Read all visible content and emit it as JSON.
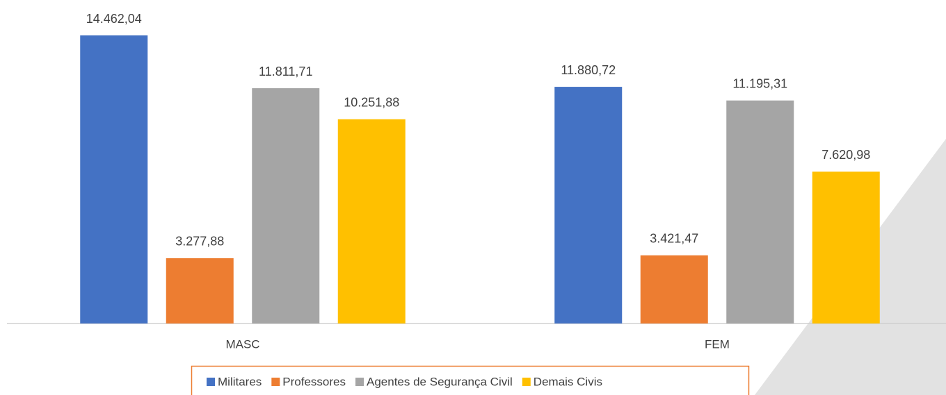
{
  "chart_data": {
    "type": "bar",
    "categories": [
      "MASC",
      "FEM"
    ],
    "series": [
      {
        "name": "Militares",
        "color": "#4472c4",
        "values": [
          14462.04,
          11880.72
        ],
        "value_labels": [
          "14.462,04",
          "11.880,72"
        ]
      },
      {
        "name": "Professores",
        "color": "#ed7d31",
        "values": [
          3277.88,
          3421.47
        ],
        "value_labels": [
          "3.277,88",
          "3.421,47"
        ]
      },
      {
        "name": "Agentes de Segurança Civil",
        "color": "#a5a5a5",
        "values": [
          11811.71,
          11195.31
        ],
        "value_labels": [
          "11.811,71",
          "11.195,31"
        ]
      },
      {
        "name": "Demais Civis",
        "color": "#ffc000",
        "values": [
          10251.88,
          7620.98
        ],
        "value_labels": [
          "10.251,88",
          "7.620,98"
        ]
      }
    ],
    "legend": "bottom"
  }
}
